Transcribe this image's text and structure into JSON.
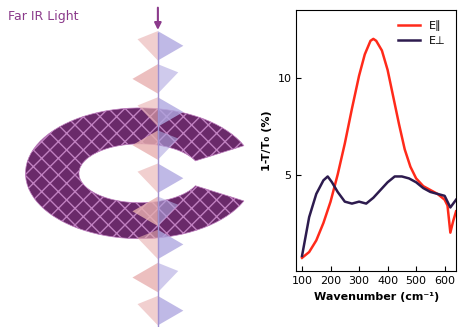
{
  "illustration": {
    "text": "Far IR Light"
  },
  "chart_data": {
    "type": "line",
    "x_label": "Wavenumber (cm⁻¹)",
    "y_label": "1-T/T₀ (%)",
    "xlim": [
      80,
      640
    ],
    "xticks": [
      100,
      200,
      300,
      400,
      500,
      600
    ],
    "ylim": [
      0,
      13.5
    ],
    "yticks": [
      5,
      10
    ],
    "legend": "upper right",
    "series": [
      {
        "name": "E∥",
        "color": "#ff2a1a",
        "line_style": "solid",
        "x": [
          100,
          125,
          150,
          175,
          200,
          225,
          250,
          275,
          300,
          320,
          340,
          350,
          360,
          380,
          400,
          420,
          440,
          460,
          480,
          500,
          525,
          550,
          575,
          600,
          610,
          620,
          630,
          640
        ],
        "values": [
          0.7,
          1.0,
          1.6,
          2.5,
          3.6,
          5.0,
          6.6,
          8.4,
          10.1,
          11.2,
          11.9,
          12.0,
          11.9,
          11.4,
          10.4,
          9.0,
          7.6,
          6.3,
          5.4,
          4.8,
          4.4,
          4.2,
          4.0,
          3.7,
          3.4,
          2.0,
          2.6,
          3.1
        ]
      },
      {
        "name": "E⊥",
        "color": "#2d1b4e",
        "line_style": "solid",
        "x": [
          100,
          110,
          125,
          150,
          175,
          190,
          205,
          225,
          250,
          275,
          300,
          325,
          350,
          375,
          400,
          425,
          450,
          475,
          500,
          525,
          550,
          575,
          600,
          620,
          640
        ],
        "values": [
          0.8,
          1.6,
          2.8,
          4.0,
          4.7,
          4.9,
          4.6,
          4.1,
          3.6,
          3.5,
          3.6,
          3.5,
          3.8,
          4.2,
          4.6,
          4.9,
          4.9,
          4.8,
          4.6,
          4.3,
          4.1,
          4.0,
          3.9,
          3.3,
          3.7
        ]
      }
    ]
  }
}
